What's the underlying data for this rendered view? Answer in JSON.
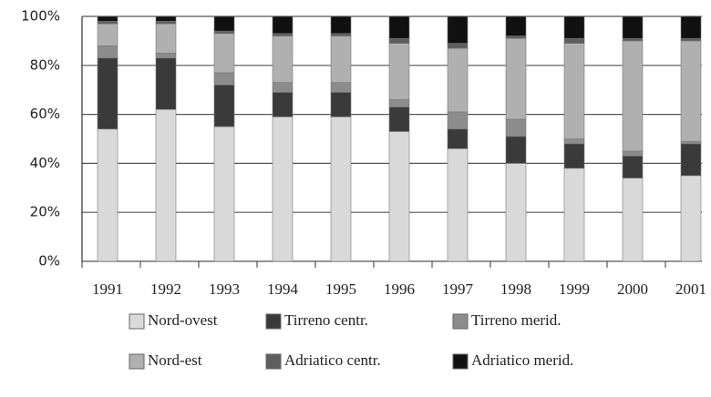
{
  "chart_data": {
    "type": "stacked_bar_100",
    "categories": [
      "1991",
      "1992",
      "1993",
      "1994",
      "1995",
      "1996",
      "1997",
      "1998",
      "1999",
      "2000",
      "2001"
    ],
    "series": [
      {
        "name": "Nord-ovest",
        "color": "#d9d9d9",
        "values": [
          54,
          62,
          55,
          59,
          59,
          53,
          46,
          40,
          38,
          34,
          35
        ]
      },
      {
        "name": "Tirreno centr.",
        "color": "#3a3a3a",
        "values": [
          29,
          21,
          17,
          10,
          10,
          10,
          8,
          11,
          10,
          9,
          13
        ]
      },
      {
        "name": "Tirreno merid.",
        "color": "#8c8c8c",
        "values": [
          5,
          2,
          5,
          4,
          4,
          3,
          7,
          7,
          2,
          2,
          1
        ]
      },
      {
        "name": "Nord-est",
        "color": "#b0b0b0",
        "values": [
          9,
          12,
          16,
          19,
          19,
          23,
          26,
          33,
          39,
          45,
          41
        ]
      },
      {
        "name": "Adriatico centr.",
        "color": "#5e5e5e",
        "values": [
          1,
          1,
          1,
          1,
          1,
          2,
          2,
          1,
          2,
          1,
          1
        ]
      },
      {
        "name": "Adriatico merid.",
        "color": "#111111",
        "values": [
          2,
          2,
          6,
          7,
          7,
          9,
          11,
          8,
          9,
          9,
          9
        ]
      }
    ],
    "ylim": [
      0,
      100
    ],
    "yticks": [
      {
        "value": 0,
        "label": "0%"
      },
      {
        "value": 20,
        "label": "20%"
      },
      {
        "value": 40,
        "label": "40%"
      },
      {
        "value": 60,
        "label": "60%"
      },
      {
        "value": 80,
        "label": "80%"
      },
      {
        "value": 100,
        "label": "100%"
      }
    ],
    "grid": true
  }
}
